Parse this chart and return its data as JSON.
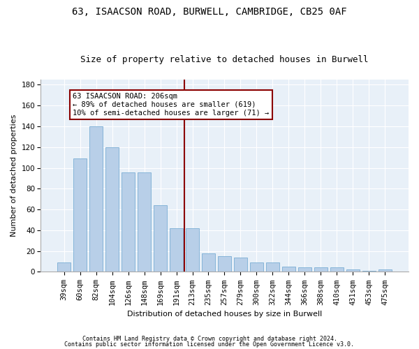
{
  "title": "63, ISAACSON ROAD, BURWELL, CAMBRIDGE, CB25 0AF",
  "subtitle": "Size of property relative to detached houses in Burwell",
  "xlabel": "Distribution of detached houses by size in Burwell",
  "ylabel": "Number of detached properties",
  "categories": [
    "39sqm",
    "60sqm",
    "82sqm",
    "104sqm",
    "126sqm",
    "148sqm",
    "169sqm",
    "191sqm",
    "213sqm",
    "235sqm",
    "257sqm",
    "279sqm",
    "300sqm",
    "322sqm",
    "344sqm",
    "366sqm",
    "388sqm",
    "410sqm",
    "431sqm",
    "453sqm",
    "475sqm"
  ],
  "values": [
    9,
    109,
    140,
    120,
    96,
    96,
    64,
    42,
    42,
    18,
    15,
    14,
    9,
    9,
    5,
    4,
    4,
    4,
    2,
    1,
    2
  ],
  "bar_color": "#b8cfe8",
  "bar_edge_color": "#7aadd4",
  "vline_color": "#8b0000",
  "vline_x": 8,
  "annotation_text": "63 ISAACSON ROAD: 206sqm\n← 89% of detached houses are smaller (619)\n10% of semi-detached houses are larger (71) →",
  "annotation_box_color": "#ffffff",
  "annotation_box_edge": "#8b0000",
  "footer1": "Contains HM Land Registry data © Crown copyright and database right 2024.",
  "footer2": "Contains public sector information licensed under the Open Government Licence v3.0.",
  "ylim": [
    0,
    185
  ],
  "yticks": [
    0,
    20,
    40,
    60,
    80,
    100,
    120,
    140,
    160,
    180
  ],
  "bg_color": "#e8f0f8",
  "fig_bg_color": "#ffffff",
  "title_fontsize": 10,
  "subtitle_fontsize": 9,
  "axis_label_fontsize": 8,
  "tick_fontsize": 7.5,
  "annotation_fontsize": 7.5,
  "footer_fontsize": 6
}
